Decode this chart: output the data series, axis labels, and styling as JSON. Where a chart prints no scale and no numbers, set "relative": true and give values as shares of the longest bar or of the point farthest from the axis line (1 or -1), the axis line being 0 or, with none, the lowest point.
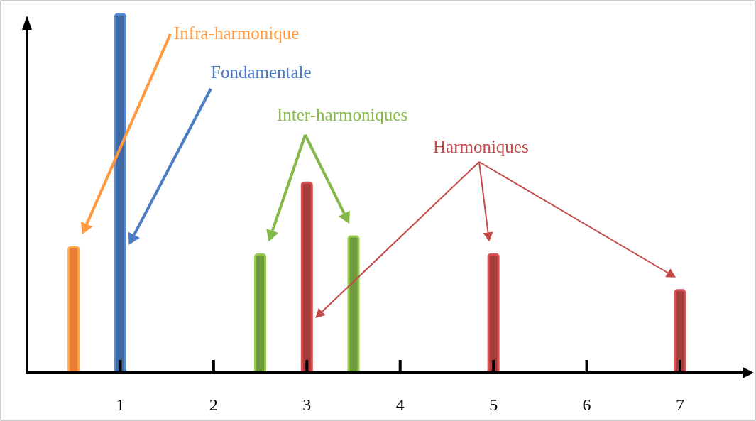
{
  "chart_data": {
    "type": "bar",
    "relative": true,
    "xlim": [
      0,
      7.7
    ],
    "xticks": [
      1,
      2,
      3,
      4,
      5,
      6,
      7
    ],
    "series": [
      {
        "name": "Infra-harmonique",
        "color": "#e87f35",
        "x": [
          0.5
        ],
        "values": [
          0.35
        ]
      },
      {
        "name": "Fondamentale",
        "color": "#3f69a5",
        "x": [
          1
        ],
        "values": [
          1
        ]
      },
      {
        "name": "Inter-harmoniques",
        "color": "#6f9a3c",
        "x": [
          2.5,
          3.5
        ],
        "values": [
          0.33,
          0.38
        ]
      },
      {
        "name": "Harmoniques",
        "color": "#a53d3d",
        "x": [
          3,
          5,
          7
        ],
        "values": [
          0.53,
          0.33,
          0.23
        ]
      }
    ]
  }
}
